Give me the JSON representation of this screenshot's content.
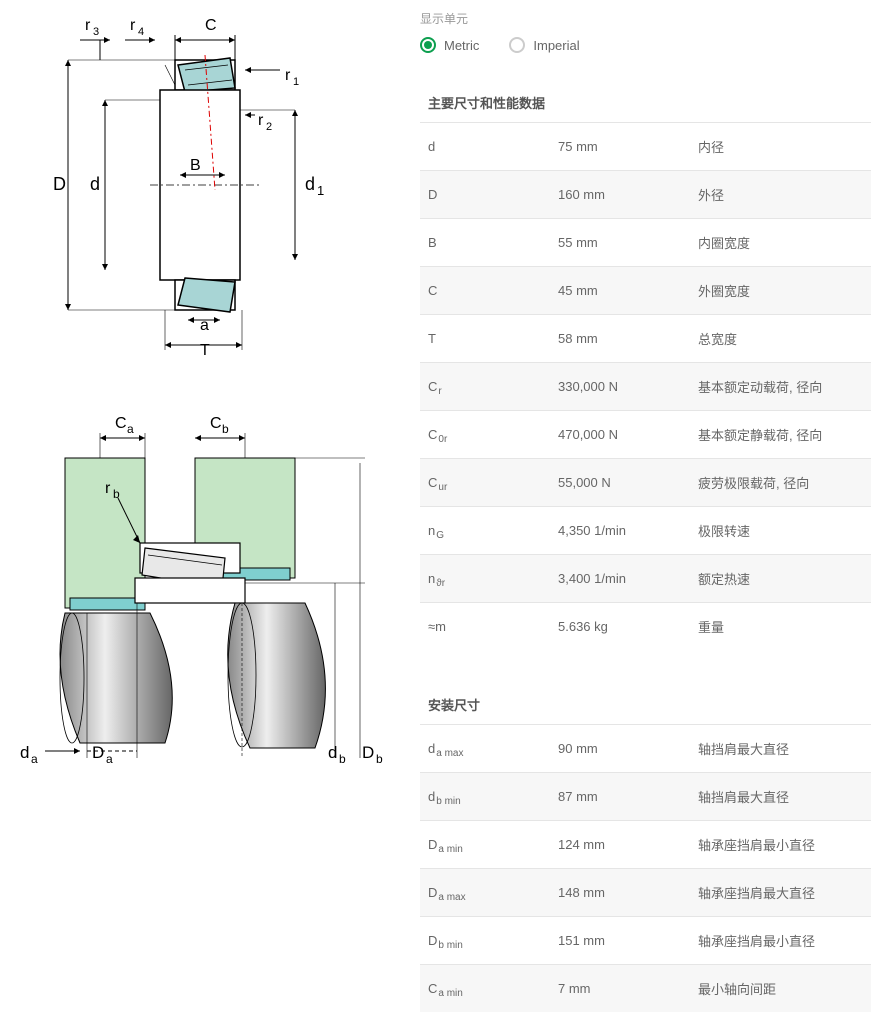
{
  "units": {
    "header": "显示单元",
    "metric": "Metric",
    "imperial": "Imperial"
  },
  "sections": {
    "main": "主要尺寸和性能数据",
    "mounting": "安装尺寸"
  },
  "main_dims": [
    {
      "sym": "d",
      "sub": "",
      "val": "75 mm",
      "desc": "内径"
    },
    {
      "sym": "D",
      "sub": "",
      "val": "160 mm",
      "desc": "外径"
    },
    {
      "sym": "B",
      "sub": "",
      "val": "55 mm",
      "desc": "内圈宽度"
    },
    {
      "sym": "C",
      "sub": "",
      "val": "45 mm",
      "desc": "外圈宽度"
    },
    {
      "sym": "T",
      "sub": "",
      "val": "58 mm",
      "desc": "总宽度"
    },
    {
      "sym": "C",
      "sub": "r",
      "val": "330,000 N",
      "desc": "基本额定动载荷, 径向"
    },
    {
      "sym": "C",
      "sub": "0r",
      "val": "470,000 N",
      "desc": "基本额定静载荷, 径向"
    },
    {
      "sym": "C",
      "sub": "ur",
      "val": "55,000 N",
      "desc": "疲劳极限载荷, 径向"
    },
    {
      "sym": "n",
      "sub": "G",
      "val": "4,350 1/min",
      "desc": "极限转速"
    },
    {
      "sym": "n",
      "sub": "ϑr",
      "val": "3,400 1/min",
      "desc": "额定热速"
    },
    {
      "sym": "≈m",
      "sub": "",
      "val": "5.636 kg",
      "desc": "重量"
    }
  ],
  "mounting_dims": [
    {
      "sym": "d",
      "sub": "a max",
      "val": "90 mm",
      "desc": "轴挡肩最大直径"
    },
    {
      "sym": "d",
      "sub": "b min",
      "val": "87 mm",
      "desc": "轴挡肩最大直径"
    },
    {
      "sym": "D",
      "sub": "a min",
      "val": "124 mm",
      "desc": "轴承座挡肩最小直径"
    },
    {
      "sym": "D",
      "sub": "a max",
      "val": "148 mm",
      "desc": "轴承座挡肩最大直径"
    },
    {
      "sym": "D",
      "sub": "b min",
      "val": "151 mm",
      "desc": "轴承座挡肩最小直径"
    },
    {
      "sym": "C",
      "sub": "a min",
      "val": "7 mm",
      "desc": "最小轴向间距"
    }
  ],
  "diagram1_labels": [
    "r",
    "3",
    "r",
    "4",
    "C",
    "r",
    "1",
    "r",
    "2",
    "D",
    "d",
    "d",
    "1",
    "B",
    "a",
    "T"
  ],
  "diagram2_labels": [
    "C",
    "a",
    "C",
    "b",
    "r",
    "b",
    "r",
    "a",
    "d",
    "a",
    "D",
    "a",
    "d",
    "b",
    "D",
    "b"
  ],
  "colors": {
    "accent": "#0d9f4f",
    "bearing_fill": "#a8d5d5",
    "mounting_fill": "#c5e5c5",
    "shaft_fill": "#d0d0d0"
  }
}
